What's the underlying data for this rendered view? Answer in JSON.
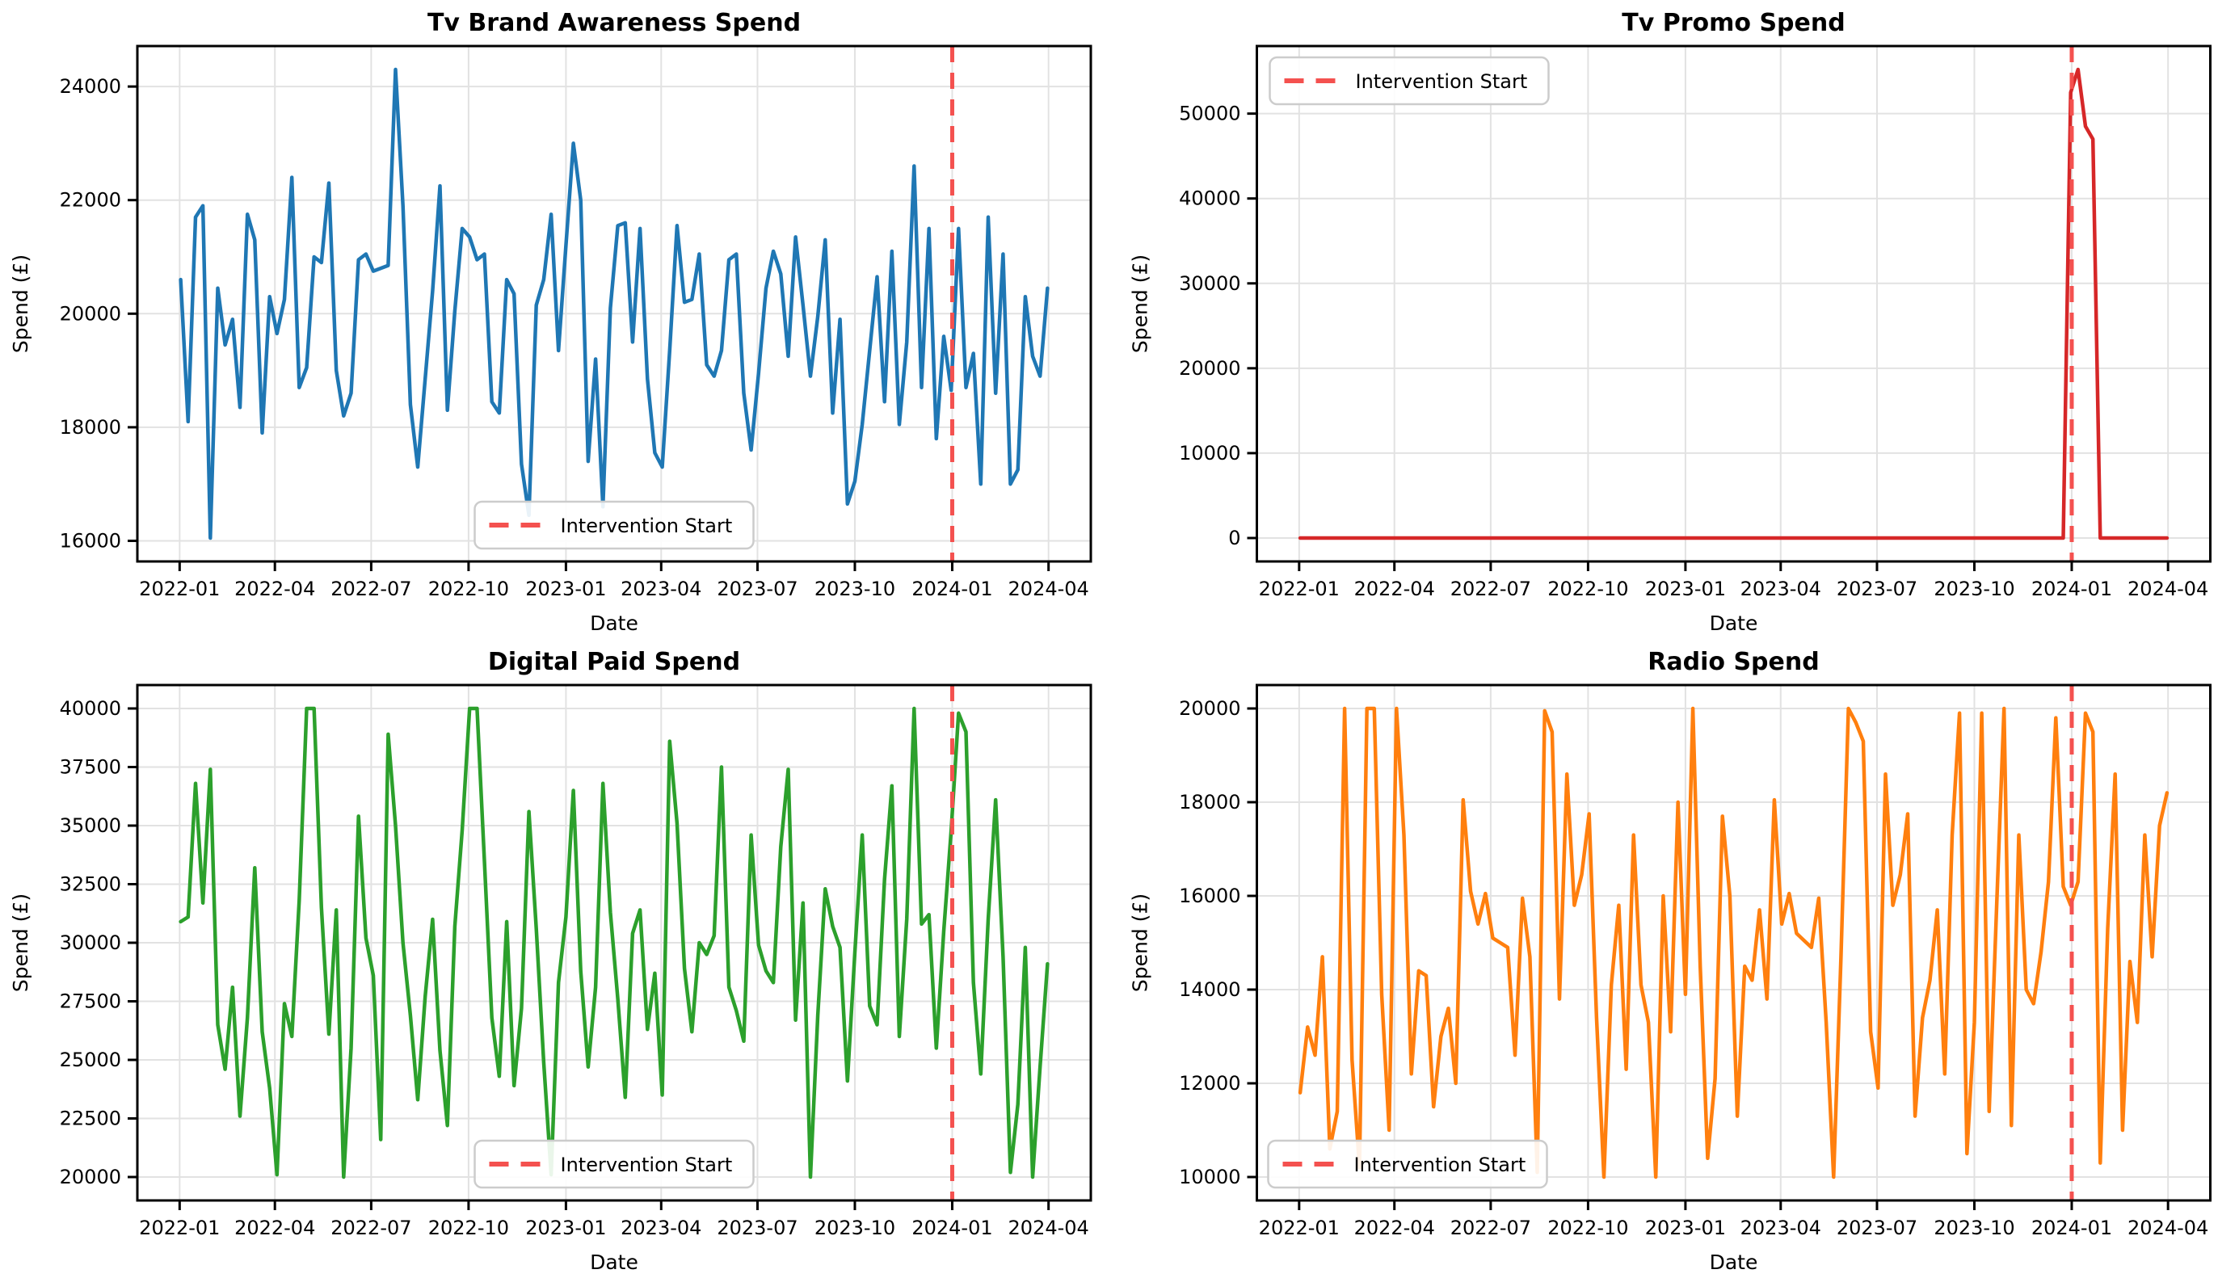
{
  "figure": {
    "background": "#ffffff"
  },
  "intervention": {
    "label": "Intervention Start",
    "color": "#f4514f",
    "x_index": 104.143
  },
  "x_axis": {
    "label": "Date",
    "start_date": "2022-01-02",
    "step_days": 7,
    "n_points": 118,
    "xlim": [
      -5.85,
      122.85
    ],
    "ticks": [
      {
        "label": "2022-01",
        "idx": -0.143
      },
      {
        "label": "2022-04",
        "idx": 12.714
      },
      {
        "label": "2022-07",
        "idx": 25.714
      },
      {
        "label": "2022-10",
        "idx": 38.857
      },
      {
        "label": "2023-01",
        "idx": 52.0
      },
      {
        "label": "2023-04",
        "idx": 64.857
      },
      {
        "label": "2023-07",
        "idx": 77.857
      },
      {
        "label": "2023-10",
        "idx": 91.0
      },
      {
        "label": "2024-01",
        "idx": 104.143
      },
      {
        "label": "2024-04",
        "idx": 117.143
      }
    ]
  },
  "chart_data": [
    {
      "type": "line",
      "title": "Tv Brand Awareness Spend",
      "xlabel": "Date",
      "ylabel": "Spend (£)",
      "color": "#1f77b4",
      "ylim": [
        15637,
        24713
      ],
      "yticks": [
        16000,
        18000,
        20000,
        22000,
        24000
      ],
      "grid": true,
      "legend": {
        "label": "Intervention Start",
        "loc": "lower-center"
      },
      "series": [
        {
          "name": "tv_brand_awareness_spend",
          "values": [
            20600,
            18100,
            21700,
            21900,
            16050,
            20450,
            19450,
            19900,
            18350,
            21750,
            21300,
            17900,
            20300,
            19650,
            20250,
            22400,
            18700,
            19050,
            21000,
            20900,
            22300,
            19000,
            18200,
            18600,
            20950,
            21050,
            20750,
            20800,
            20850,
            24300,
            21900,
            18400,
            17300,
            18850,
            20400,
            22250,
            18300,
            20050,
            21500,
            21350,
            20950,
            21050,
            18450,
            18250,
            20600,
            20350,
            17350,
            16450,
            20150,
            20600,
            21750,
            19350,
            21200,
            23000,
            22000,
            17400,
            19200,
            16600,
            20100,
            21550,
            21600,
            19500,
            21500,
            18850,
            17550,
            17300,
            19350,
            21550,
            20200,
            20250,
            21050,
            19100,
            18900,
            19350,
            20950,
            21050,
            18600,
            17600,
            18950,
            20450,
            21100,
            20700,
            19250,
            21350,
            20150,
            18900,
            19950,
            21300,
            18250,
            19900,
            16650,
            17050,
            18050,
            19350,
            20650,
            18450,
            21100,
            18050,
            19500,
            22600,
            18700,
            21500,
            17800,
            19600,
            18650,
            21500,
            18700,
            19300,
            17000,
            21700,
            18600,
            21050,
            17000,
            17250,
            20300,
            19250,
            18900,
            20450
          ]
        }
      ]
    },
    {
      "type": "line",
      "title": "Tv Promo Spend",
      "xlabel": "Date",
      "ylabel": "Spend (£)",
      "color": "#d62728",
      "ylim": [
        -2760,
        57960
      ],
      "yticks": [
        0,
        10000,
        20000,
        30000,
        40000,
        50000
      ],
      "grid": true,
      "legend": {
        "label": "Intervention Start",
        "loc": "upper-left"
      },
      "series": [
        {
          "name": "tv_promo_spend",
          "values": [
            0,
            0,
            0,
            0,
            0,
            0,
            0,
            0,
            0,
            0,
            0,
            0,
            0,
            0,
            0,
            0,
            0,
            0,
            0,
            0,
            0,
            0,
            0,
            0,
            0,
            0,
            0,
            0,
            0,
            0,
            0,
            0,
            0,
            0,
            0,
            0,
            0,
            0,
            0,
            0,
            0,
            0,
            0,
            0,
            0,
            0,
            0,
            0,
            0,
            0,
            0,
            0,
            0,
            0,
            0,
            0,
            0,
            0,
            0,
            0,
            0,
            0,
            0,
            0,
            0,
            0,
            0,
            0,
            0,
            0,
            0,
            0,
            0,
            0,
            0,
            0,
            0,
            0,
            0,
            0,
            0,
            0,
            0,
            0,
            0,
            0,
            0,
            0,
            0,
            0,
            0,
            0,
            0,
            0,
            0,
            0,
            0,
            0,
            0,
            0,
            0,
            0,
            0,
            0,
            52500,
            55200,
            48500,
            47000,
            0,
            0,
            0,
            0,
            0,
            0,
            0,
            0,
            0,
            0
          ]
        }
      ]
    },
    {
      "type": "line",
      "title": "Digital Paid Spend",
      "xlabel": "Date",
      "ylabel": "Spend (£)",
      "color": "#2ca02c",
      "ylim": [
        19000,
        41000
      ],
      "yticks": [
        20000,
        22500,
        25000,
        27500,
        30000,
        32500,
        35000,
        37500,
        40000
      ],
      "grid": true,
      "legend": {
        "label": "Intervention Start",
        "loc": "lower-center"
      },
      "series": [
        {
          "name": "digital_paid_spend",
          "values": [
            30900,
            31100,
            36800,
            31700,
            37400,
            26500,
            24600,
            28100,
            22600,
            26800,
            33200,
            26200,
            23800,
            20100,
            27400,
            26000,
            31800,
            40000,
            40000,
            31500,
            26100,
            31400,
            20000,
            25500,
            35400,
            30200,
            28600,
            21600,
            38900,
            35000,
            30000,
            26900,
            23300,
            27700,
            31000,
            25400,
            22200,
            30700,
            34800,
            40000,
            40000,
            33500,
            26800,
            24300,
            30900,
            23900,
            27200,
            35600,
            30600,
            24900,
            20100,
            28300,
            31100,
            36500,
            28800,
            24700,
            28100,
            36800,
            31300,
            27600,
            23400,
            30400,
            31400,
            26300,
            28700,
            23500,
            38600,
            35100,
            28900,
            26200,
            30000,
            29500,
            30300,
            37500,
            28100,
            27100,
            25800,
            34600,
            29900,
            28800,
            28300,
            34100,
            37400,
            26700,
            31700,
            20000,
            26900,
            32300,
            30700,
            29800,
            24100,
            29600,
            34600,
            27300,
            26500,
            32700,
            36700,
            26000,
            31000,
            40000,
            30800,
            31200,
            25500,
            30500,
            34800,
            39800,
            39000,
            28300,
            24400,
            31000,
            36100,
            29400,
            20200,
            23100,
            29800,
            20000,
            24700,
            29100
          ]
        }
      ]
    },
    {
      "type": "line",
      "title": "Radio Spend",
      "xlabel": "Date",
      "ylabel": "Spend (£)",
      "color": "#ff7f0e",
      "ylim": [
        9500,
        20500
      ],
      "yticks": [
        10000,
        12000,
        14000,
        16000,
        18000,
        20000
      ],
      "grid": true,
      "legend": {
        "label": "Intervention Start",
        "loc": "lower-left"
      },
      "series": [
        {
          "name": "radio_spend",
          "values": [
            11800,
            13200,
            12600,
            14700,
            10600,
            11400,
            20000,
            12500,
            10200,
            20000,
            20000,
            13900,
            11000,
            20000,
            17300,
            12200,
            14400,
            14300,
            11500,
            13000,
            13600,
            12000,
            18050,
            16100,
            15400,
            16050,
            15100,
            15000,
            14900,
            12600,
            15950,
            14700,
            10100,
            19950,
            19500,
            13800,
            18600,
            15800,
            16450,
            17750,
            13400,
            10000,
            14100,
            15800,
            12300,
            17300,
            14100,
            13300,
            10000,
            16000,
            13100,
            18000,
            13900,
            20000,
            14500,
            10400,
            12100,
            17700,
            16000,
            11300,
            14500,
            14200,
            15700,
            13800,
            18050,
            15400,
            16050,
            15200,
            15050,
            14900,
            15950,
            13300,
            10000,
            14700,
            20000,
            19700,
            19300,
            13100,
            11900,
            18600,
            15800,
            16450,
            17750,
            11300,
            13400,
            14200,
            15700,
            12200,
            17300,
            19900,
            10500,
            13300,
            19900,
            11400,
            15750,
            20000,
            11100,
            17300,
            14000,
            13700,
            14800,
            16300,
            19800,
            16200,
            15800,
            16300,
            19900,
            19500,
            10300,
            15300,
            18600,
            11000,
            14600,
            13300,
            17300,
            14700,
            17500,
            18200
          ]
        }
      ]
    }
  ]
}
